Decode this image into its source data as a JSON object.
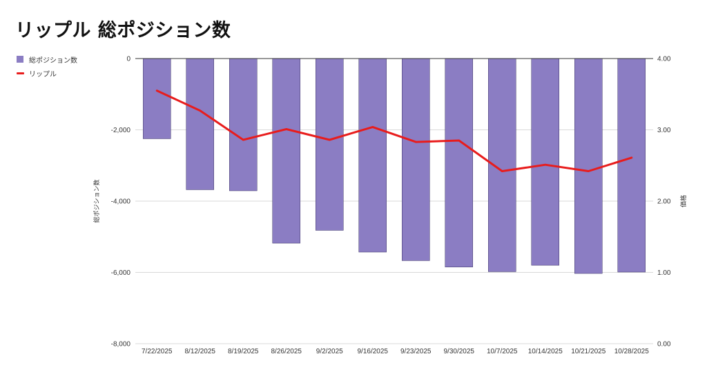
{
  "title": "リップル 総ポジション数",
  "legend": {
    "bar_label": "総ポジション数",
    "line_label": "リップル"
  },
  "colors": {
    "bar": "#8b7dc3",
    "line": "#e81c1c",
    "grid": "#d9d9d9",
    "zero": "#333333"
  },
  "chart_data": {
    "type": "bar",
    "combo": "bar+line",
    "categories": [
      "7/22/2025",
      "8/12/2025",
      "8/19/2025",
      "8/26/2025",
      "9/2/2025",
      "9/16/2025",
      "9/23/2025",
      "9/30/2025",
      "10/7/2025",
      "10/14/2025",
      "10/21/2025",
      "10/28/2025"
    ],
    "series": [
      {
        "name": "総ポジション数",
        "type": "bar",
        "axis": "left",
        "values": [
          -2250,
          -3680,
          -3710,
          -5180,
          -4820,
          -5430,
          -5670,
          -5850,
          -5980,
          -5800,
          -6030,
          -5990
        ]
      },
      {
        "name": "リップル",
        "type": "line",
        "axis": "right",
        "values": [
          3.55,
          3.27,
          2.86,
          3.01,
          2.86,
          3.04,
          2.83,
          2.85,
          2.42,
          2.51,
          2.42,
          2.61
        ]
      }
    ],
    "ylabel": "総ポジション数",
    "y2label": "価格",
    "ylim": [
      -8000,
      0
    ],
    "yticks": [
      "0",
      "-2,000",
      "-4,000",
      "-6,000",
      "-8,000"
    ],
    "y2lim": [
      0,
      4
    ],
    "y2ticks": [
      "4.00",
      "3.00",
      "2.00",
      "1.00",
      "0.00"
    ],
    "grid": true,
    "legend_position": "top-left"
  }
}
